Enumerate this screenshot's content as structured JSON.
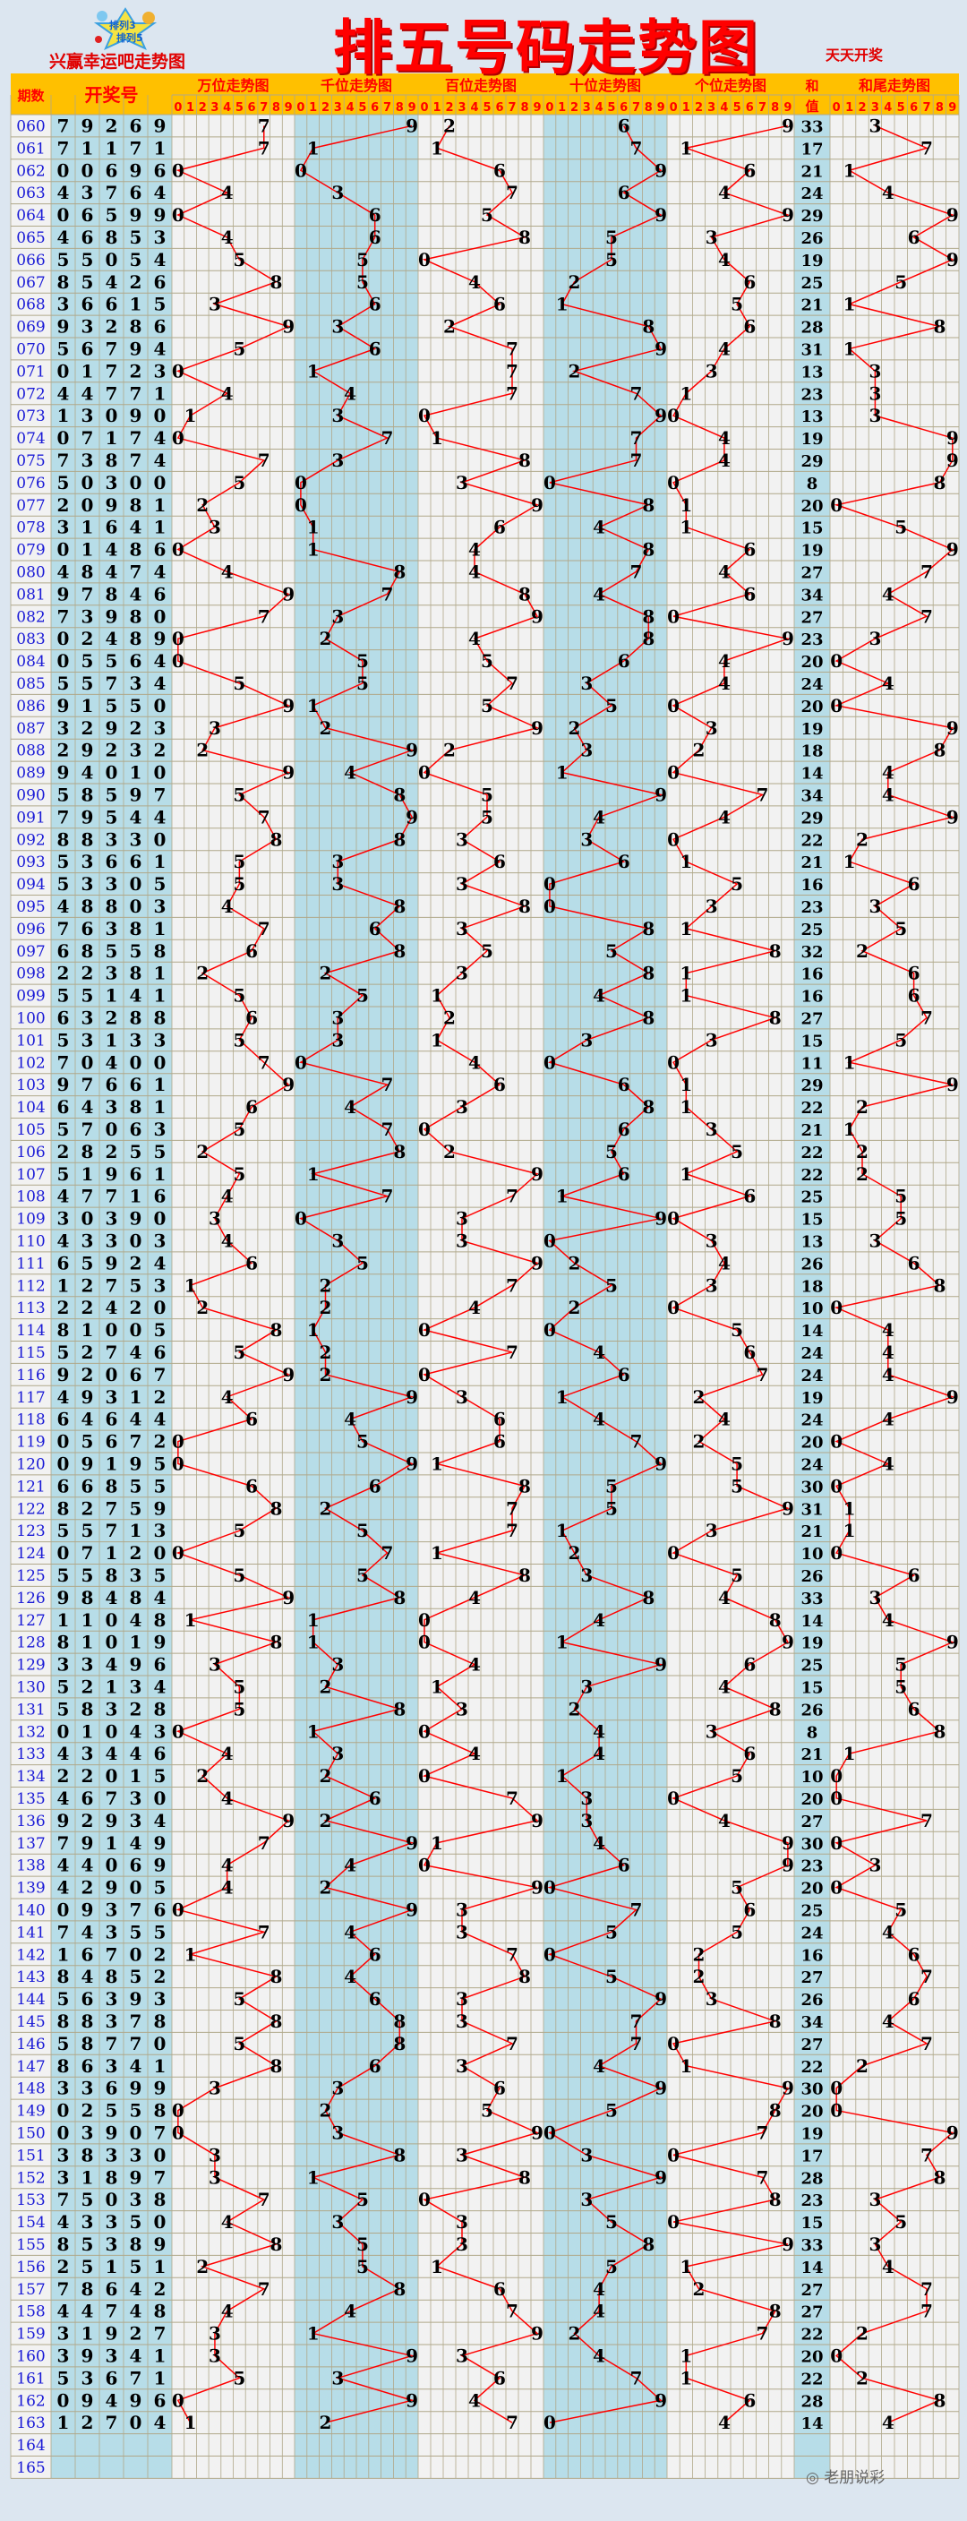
{
  "header": {
    "title": "排五号码走势图",
    "subtitle": "兴赢幸运吧走势图",
    "schedule": "天天开奖",
    "logo_text": "排列3 排列5",
    "watermark": "老朋说彩"
  },
  "table": {
    "col_period": "期数",
    "col_number": "开奖号",
    "sections": [
      "万位走势图",
      "千位走势图",
      "百位走势图",
      "十位走势图",
      "个位走势图"
    ],
    "col_sum_top": "和",
    "col_sum_bottom": "值",
    "col_tail": "和尾走势图",
    "digits": [
      "0",
      "1",
      "2",
      "3",
      "4",
      "5",
      "6",
      "7",
      "8",
      "9"
    ]
  },
  "colors": {
    "accent": "#ff0000",
    "header_bg": "#ffc000",
    "number_bg": "#b7dde8",
    "line": "#ff0000",
    "period": "#1a1ad6"
  },
  "chart_data": {
    "type": "table",
    "rows": [
      [
        "060",
        "79269",
        33
      ],
      [
        "061",
        "71171",
        17
      ],
      [
        "062",
        "00696",
        21
      ],
      [
        "063",
        "43764",
        24
      ],
      [
        "064",
        "06599",
        29
      ],
      [
        "065",
        "46853",
        26
      ],
      [
        "066",
        "55054",
        19
      ],
      [
        "067",
        "85426",
        25
      ],
      [
        "068",
        "36615",
        21
      ],
      [
        "069",
        "93286",
        28
      ],
      [
        "070",
        "56794",
        31
      ],
      [
        "071",
        "01723",
        13
      ],
      [
        "072",
        "44771",
        23
      ],
      [
        "073",
        "13090",
        13
      ],
      [
        "074",
        "07174",
        19
      ],
      [
        "075",
        "73874",
        29
      ],
      [
        "076",
        "50300",
        8
      ],
      [
        "077",
        "20981",
        20
      ],
      [
        "078",
        "31641",
        15
      ],
      [
        "079",
        "01486",
        19
      ],
      [
        "080",
        "48474",
        27
      ],
      [
        "081",
        "97846",
        34
      ],
      [
        "082",
        "73980",
        27
      ],
      [
        "083",
        "02489",
        23
      ],
      [
        "084",
        "05564",
        20
      ],
      [
        "085",
        "55734",
        24
      ],
      [
        "086",
        "91550",
        20
      ],
      [
        "087",
        "32923",
        19
      ],
      [
        "088",
        "29232",
        18
      ],
      [
        "089",
        "94010",
        14
      ],
      [
        "090",
        "58597",
        34
      ],
      [
        "091",
        "79544",
        29
      ],
      [
        "092",
        "88330",
        22
      ],
      [
        "093",
        "53661",
        21
      ],
      [
        "094",
        "53305",
        16
      ],
      [
        "095",
        "48803",
        23
      ],
      [
        "096",
        "76381",
        25
      ],
      [
        "097",
        "68558",
        32
      ],
      [
        "098",
        "22381",
        16
      ],
      [
        "099",
        "55141",
        16
      ],
      [
        "100",
        "63288",
        27
      ],
      [
        "101",
        "53133",
        15
      ],
      [
        "102",
        "70400",
        11
      ],
      [
        "103",
        "97661",
        29
      ],
      [
        "104",
        "64381",
        22
      ],
      [
        "105",
        "57063",
        21
      ],
      [
        "106",
        "28255",
        22
      ],
      [
        "107",
        "51961",
        22
      ],
      [
        "108",
        "47716",
        25
      ],
      [
        "109",
        "30390",
        15
      ],
      [
        "110",
        "43303",
        13
      ],
      [
        "111",
        "65924",
        26
      ],
      [
        "112",
        "12753",
        18
      ],
      [
        "113",
        "22420",
        10
      ],
      [
        "114",
        "81005",
        14
      ],
      [
        "115",
        "52746",
        24
      ],
      [
        "116",
        "92067",
        24
      ],
      [
        "117",
        "49312",
        19
      ],
      [
        "118",
        "64644",
        24
      ],
      [
        "119",
        "05672",
        20
      ],
      [
        "120",
        "09195",
        24
      ],
      [
        "121",
        "66855",
        30
      ],
      [
        "122",
        "82759",
        31
      ],
      [
        "123",
        "55713",
        21
      ],
      [
        "124",
        "07120",
        10
      ],
      [
        "125",
        "55835",
        26
      ],
      [
        "126",
        "98484",
        33
      ],
      [
        "127",
        "11048",
        14
      ],
      [
        "128",
        "81019",
        19
      ],
      [
        "129",
        "33496",
        25
      ],
      [
        "130",
        "52134",
        15
      ],
      [
        "131",
        "58328",
        26
      ],
      [
        "132",
        "01043",
        8
      ],
      [
        "133",
        "43446",
        21
      ],
      [
        "134",
        "22015",
        10
      ],
      [
        "135",
        "46730",
        20
      ],
      [
        "136",
        "92934",
        27
      ],
      [
        "137",
        "79149",
        30
      ],
      [
        "138",
        "44069",
        23
      ],
      [
        "139",
        "42905",
        20
      ],
      [
        "140",
        "09376",
        25
      ],
      [
        "141",
        "74355",
        24
      ],
      [
        "142",
        "16702",
        16
      ],
      [
        "143",
        "84852",
        27
      ],
      [
        "144",
        "56393",
        26
      ],
      [
        "145",
        "88378",
        34
      ],
      [
        "146",
        "58770",
        27
      ],
      [
        "147",
        "86341",
        22
      ],
      [
        "148",
        "33699",
        30
      ],
      [
        "149",
        "02558",
        20
      ],
      [
        "150",
        "03907",
        19
      ],
      [
        "151",
        "38330",
        17
      ],
      [
        "152",
        "31897",
        28
      ],
      [
        "153",
        "75038",
        23
      ],
      [
        "154",
        "43350",
        15
      ],
      [
        "155",
        "85389",
        33
      ],
      [
        "156",
        "25151",
        14
      ],
      [
        "157",
        "78642",
        27
      ],
      [
        "158",
        "44748",
        27
      ],
      [
        "159",
        "31927",
        22
      ],
      [
        "160",
        "39341",
        20
      ],
      [
        "161",
        "53671",
        22
      ],
      [
        "162",
        "09496",
        28
      ],
      [
        "163",
        "12704",
        14
      ],
      [
        "164",
        "",
        null
      ],
      [
        "165",
        "",
        null
      ]
    ]
  }
}
